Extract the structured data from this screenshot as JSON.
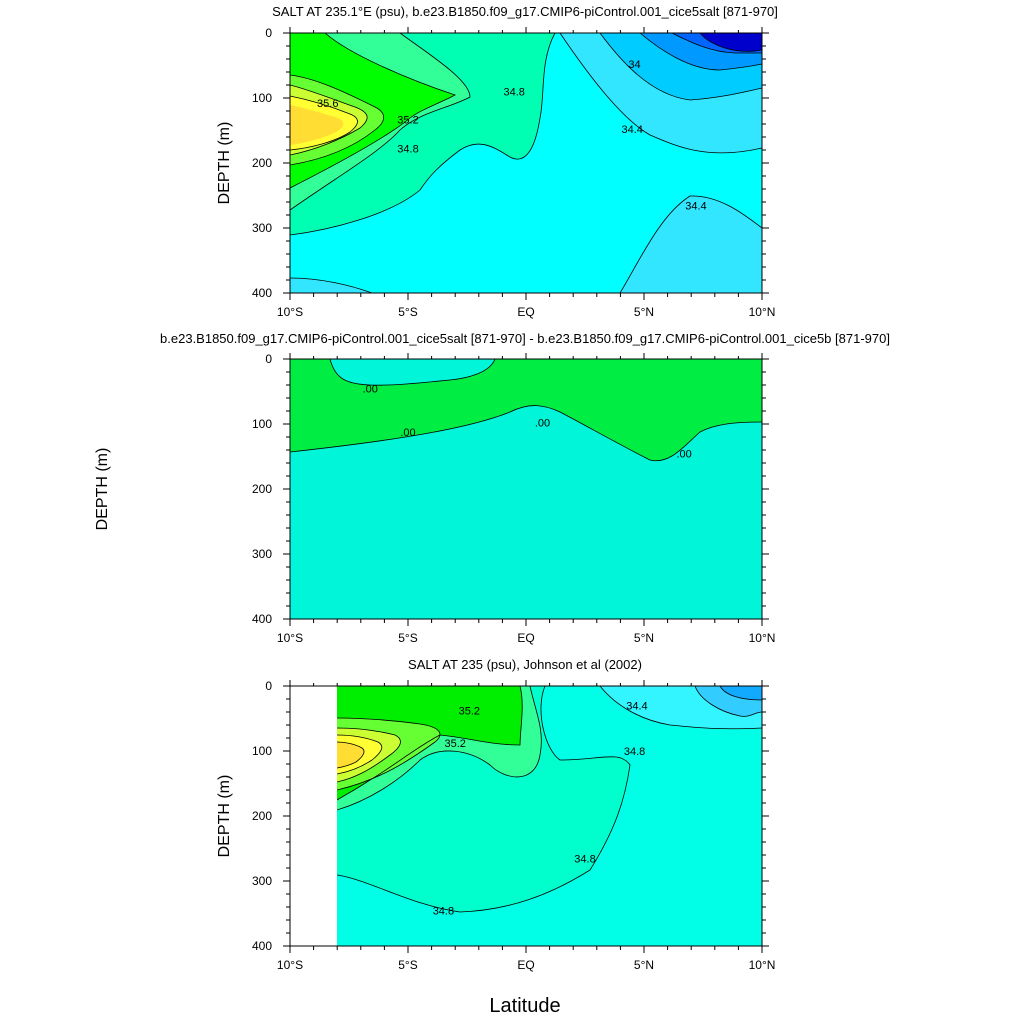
{
  "figure": {
    "x_axis_title": "Latitude",
    "shared_ylabel": "DEPTH (m)",
    "palette": [
      "#0000cd",
      "#0066ff",
      "#0099ff",
      "#00ccff",
      "#33e6ff",
      "#00ffff",
      "#00ffe6",
      "#00f5b0",
      "#33ff99",
      "#00ff00",
      "#66ff33",
      "#ccff33",
      "#ffff33",
      "#ffdd33"
    ]
  },
  "chart_data": [
    {
      "type": "contour",
      "title": "SALT AT 235.1°E (psu), b.e23.B1850.f09_g17.CMIP6-piControl.001_cice5salt [871-970]",
      "xlabel": "",
      "ylabel": "DEPTH (m)",
      "xlim": [
        -10,
        10
      ],
      "ylim": [
        400,
        0
      ],
      "x_ticks": [
        -10,
        -5,
        0,
        5,
        10
      ],
      "x_tick_labels": [
        "10°S",
        "5°S",
        "EQ",
        "5°N",
        "10°N"
      ],
      "y_ticks": [
        0,
        100,
        200,
        300,
        400
      ],
      "y_tick_labels": [
        "0",
        "100",
        "200",
        "300",
        "400"
      ],
      "grid": false,
      "contour_interval": 0.2,
      "contour_labels": [
        {
          "text": "35.6",
          "lat": -8.4,
          "depth": 108
        },
        {
          "text": "35.2",
          "lat": -5.0,
          "depth": 133
        },
        {
          "text": "34.8",
          "lat": -5.0,
          "depth": 178
        },
        {
          "text": "34.8",
          "lat": -0.5,
          "depth": 90
        },
        {
          "text": "34",
          "lat": 4.6,
          "depth": 48
        },
        {
          "text": "34.4",
          "lat": 4.5,
          "depth": 148
        },
        {
          "text": "34.4",
          "lat": 7.2,
          "depth": 265
        }
      ]
    },
    {
      "type": "contour",
      "title": "b.e23.B1850.f09_g17.CMIP6-piControl.001_cice5salt [871-970] - b.e23.B1850.f09_g17.CMIP6-piControl.001_cice5b [871-970]",
      "xlabel": "",
      "ylabel": "DEPTH (m)",
      "xlim": [
        -10,
        10
      ],
      "ylim": [
        400,
        0
      ],
      "x_ticks": [
        -10,
        -5,
        0,
        5,
        10
      ],
      "x_tick_labels": [
        "10°S",
        "5°S",
        "EQ",
        "5°N",
        "10°N"
      ],
      "y_ticks": [
        0,
        100,
        200,
        300,
        400
      ],
      "y_tick_labels": [
        "0",
        "100",
        "200",
        "300",
        "400"
      ],
      "grid": false,
      "contour_labels": [
        {
          "text": ".00",
          "lat": -6.6,
          "depth": 45
        },
        {
          "text": ".00",
          "lat": -5.0,
          "depth": 112
        },
        {
          "text": ".00",
          "lat": 0.7,
          "depth": 98
        },
        {
          "text": ".00",
          "lat": 6.7,
          "depth": 145
        }
      ]
    },
    {
      "type": "contour",
      "title": "SALT AT 235 (psu), Johnson et al (2002)",
      "xlabel": "Latitude",
      "ylabel": "DEPTH (m)",
      "xlim": [
        -10,
        10
      ],
      "ylim": [
        400,
        0
      ],
      "x_ticks": [
        -10,
        -5,
        0,
        5,
        10
      ],
      "x_tick_labels": [
        "10°S",
        "5°S",
        "EQ",
        "5°N",
        "10°N"
      ],
      "y_ticks": [
        0,
        100,
        200,
        300,
        400
      ],
      "y_tick_labels": [
        "0",
        "100",
        "200",
        "300",
        "400"
      ],
      "grid": false,
      "data_start_lat": -8,
      "contour_labels": [
        {
          "text": "35.2",
          "lat": -2.4,
          "depth": 38
        },
        {
          "text": "35.2",
          "lat": -3.0,
          "depth": 88
        },
        {
          "text": "34.4",
          "lat": 4.7,
          "depth": 30
        },
        {
          "text": "34.8",
          "lat": 4.6,
          "depth": 100
        },
        {
          "text": "34.8",
          "lat": 2.5,
          "depth": 265
        },
        {
          "text": "34.8",
          "lat": -3.5,
          "depth": 345
        }
      ]
    }
  ]
}
